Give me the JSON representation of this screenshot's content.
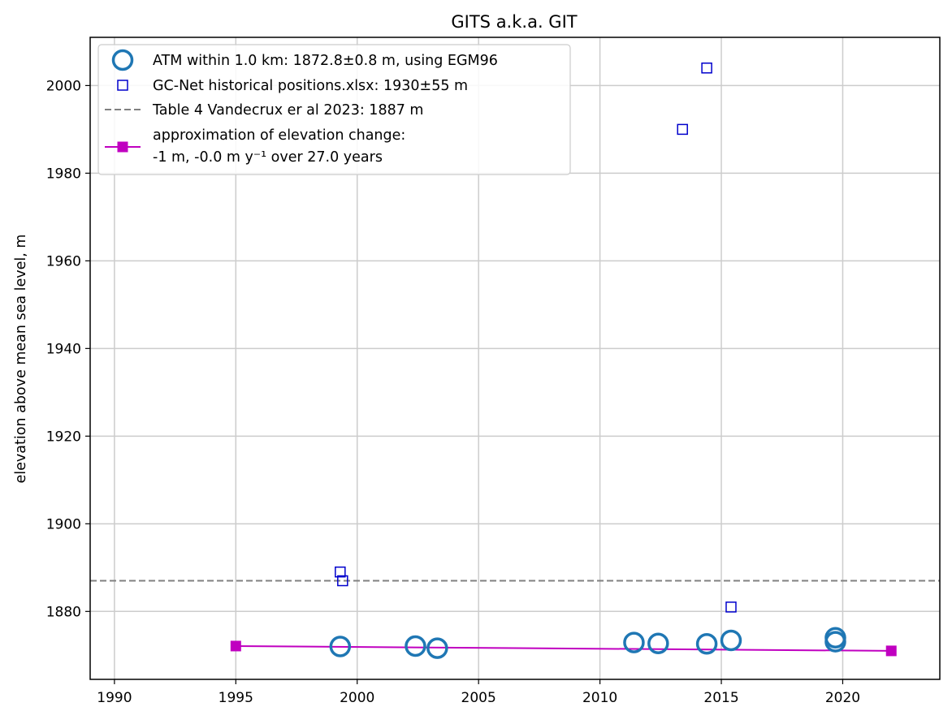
{
  "chart_data": {
    "type": "scatter",
    "title": "GITS a.k.a. GIT",
    "xlabel": "",
    "ylabel": "elevation above mean sea level, m",
    "xlim": [
      1989,
      2024
    ],
    "ylim": [
      1864.5,
      2011
    ],
    "xticks": [
      1990,
      1995,
      2000,
      2005,
      2010,
      2015,
      2020
    ],
    "yticks": [
      1880,
      1900,
      1920,
      1940,
      1960,
      1980,
      2000
    ],
    "grid": true,
    "legend_position": "top-left",
    "series": [
      {
        "name": "ATM within 1.0 km: 1872.8±0.8 m, using EGM96",
        "kind": "marker",
        "marker": "circle-open",
        "color": "#1f77b4",
        "points": [
          {
            "x": 1999.3,
            "y": 1872.0
          },
          {
            "x": 2002.4,
            "y": 1872.1
          },
          {
            "x": 2003.3,
            "y": 1871.6
          },
          {
            "x": 2011.4,
            "y": 1872.9
          },
          {
            "x": 2012.4,
            "y": 1872.7
          },
          {
            "x": 2014.4,
            "y": 1872.6
          },
          {
            "x": 2015.4,
            "y": 1873.4
          },
          {
            "x": 2019.7,
            "y": 1874.0
          },
          {
            "x": 2019.7,
            "y": 1873.1
          }
        ]
      },
      {
        "name": "GC-Net historical positions.xlsx: 1930±55 m",
        "kind": "marker",
        "marker": "square-open",
        "color": "#0000cc",
        "points": [
          {
            "x": 1999.3,
            "y": 1889
          },
          {
            "x": 1999.4,
            "y": 1887
          },
          {
            "x": 2013.4,
            "y": 1990
          },
          {
            "x": 2014.4,
            "y": 2004
          },
          {
            "x": 2015.4,
            "y": 1881
          }
        ]
      },
      {
        "name": "Table 4 Vandecrux er al 2023: 1887 m",
        "kind": "hline",
        "color": "#808080",
        "y": 1887
      },
      {
        "name": "approximation of elevation change:\n-1 m, -0.0 m y⁻¹ over 27.0 years",
        "kind": "line",
        "marker": "square-filled",
        "color": "#c000c0",
        "points": [
          {
            "x": 1995.0,
            "y": 1872.1
          },
          {
            "x": 2022.0,
            "y": 1871.0
          }
        ]
      }
    ]
  }
}
